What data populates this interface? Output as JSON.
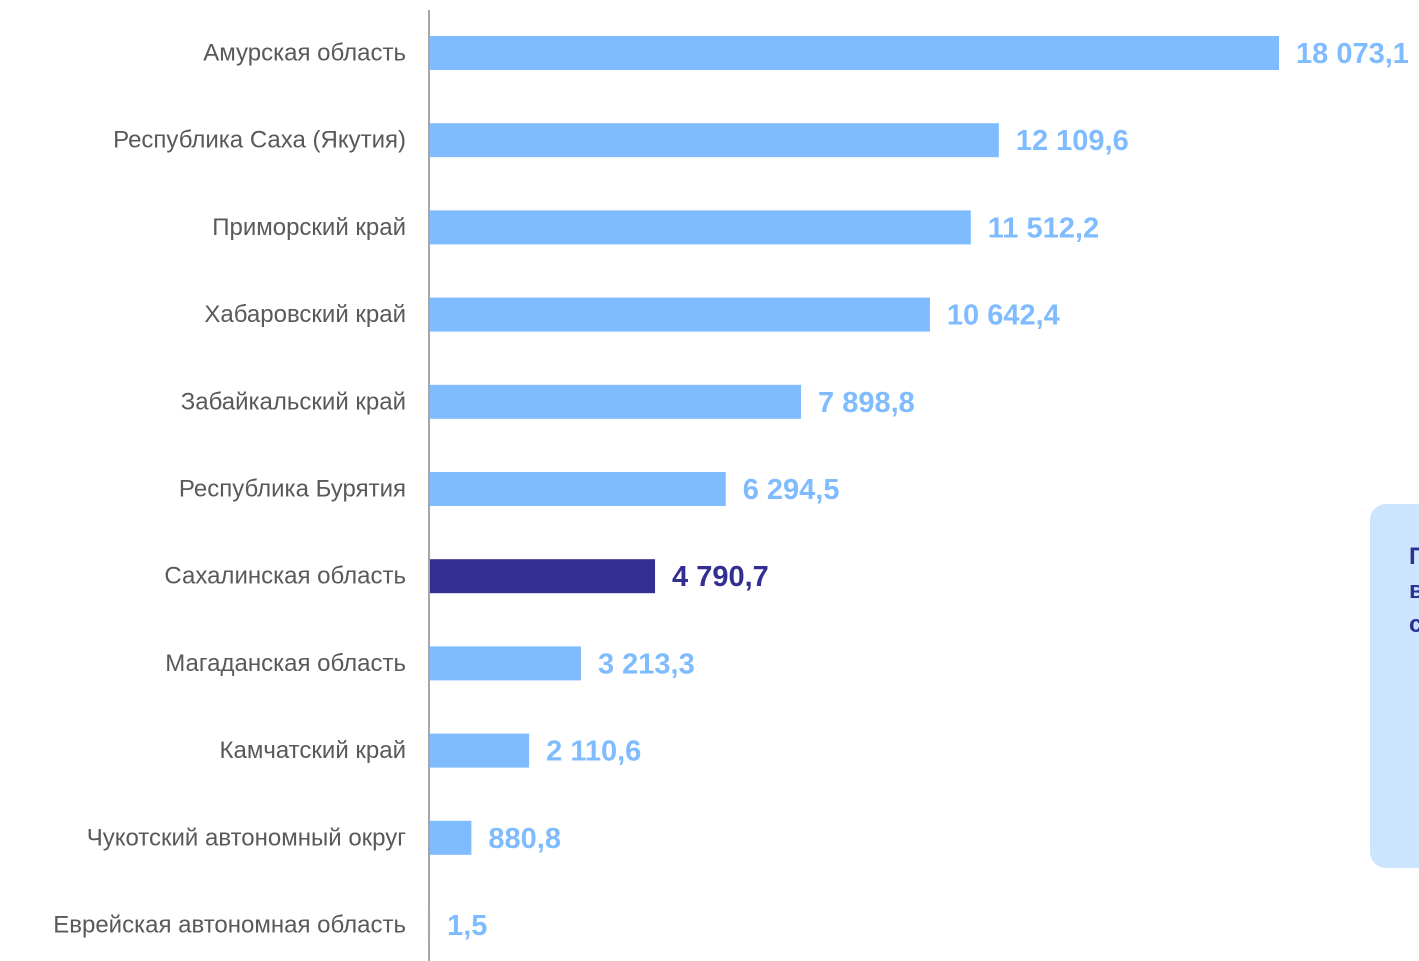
{
  "chart_data": {
    "type": "bar",
    "orientation": "horizontal",
    "categories": [
      "Амурская область",
      "Республика Саха (Якутия)",
      "Приморский край",
      "Хабаровский край",
      "Забайкальский край",
      "Республика Бурятия",
      "Сахалинская область",
      "Магаданская область",
      "Камчатский край",
      "Чукотский автономный округ",
      "Еврейская автономная область"
    ],
    "values": [
      18073.1,
      12109.6,
      11512.2,
      10642.4,
      7898.8,
      6294.5,
      4790.7,
      3213.3,
      2110.6,
      880.8,
      1.5
    ],
    "value_labels": [
      "18 073,1",
      "12 109,6",
      "11 512,2",
      "10 642,4",
      "7 898,8",
      "6 294,5",
      "4 790,7",
      "3 213,3",
      "2 110,6",
      "880,8",
      "1,5"
    ],
    "highlight_index": 6,
    "colors": {
      "bar": "#7fbbff",
      "highlight": "#332e92",
      "axis": "#a6a6a6",
      "category_text": "#595959"
    },
    "title": "",
    "xlabel": "",
    "ylabel": "",
    "grid": false,
    "legend": "none"
  },
  "callout": {
    "text": "П\nв\nс"
  }
}
